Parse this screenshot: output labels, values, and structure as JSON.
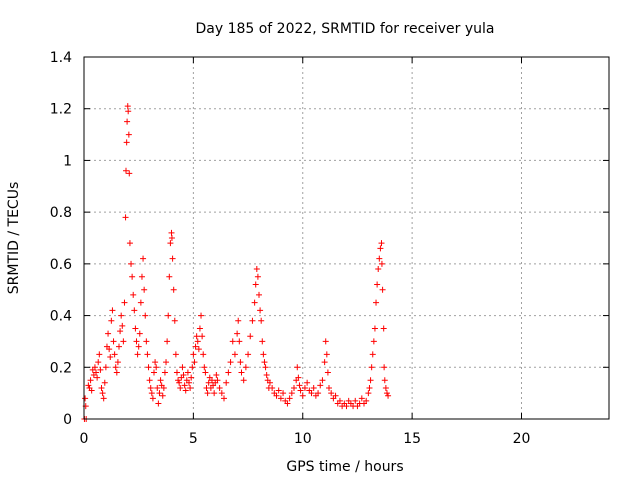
{
  "chart_data": {
    "type": "scatter",
    "title": "Day 185 of 2022, SRMTID for receiver yula",
    "xlabel": "GPS time / hours",
    "ylabel": "SRMTID / TECUs",
    "xlim": [
      0,
      24
    ],
    "ylim": [
      0,
      1.4
    ],
    "xticks": [
      0,
      5,
      10,
      15,
      20
    ],
    "xtick_labels": [
      "0",
      "5",
      "10",
      "15",
      "20"
    ],
    "yticks": [
      0,
      0.2,
      0.4,
      0.6,
      0.8,
      1.0,
      1.2,
      1.4
    ],
    "ytick_labels": [
      "0",
      "0.2",
      "0.4",
      "0.6",
      "0.8",
      "1",
      "1.2",
      "1.4"
    ],
    "grid": true,
    "marker": "plus",
    "color": "#ff0000",
    "series": [
      {
        "name": "SRMTID",
        "points": [
          [
            0.02,
            0.0
          ],
          [
            0.05,
            0.08
          ],
          [
            0.08,
            0.05
          ],
          [
            0.1,
            0.0
          ],
          [
            0.2,
            0.13
          ],
          [
            0.25,
            0.12
          ],
          [
            0.3,
            0.15
          ],
          [
            0.35,
            0.11
          ],
          [
            0.4,
            0.19
          ],
          [
            0.45,
            0.17
          ],
          [
            0.5,
            0.2
          ],
          [
            0.55,
            0.18
          ],
          [
            0.6,
            0.16
          ],
          [
            0.65,
            0.22
          ],
          [
            0.7,
            0.25
          ],
          [
            0.75,
            0.19
          ],
          [
            0.8,
            0.12
          ],
          [
            0.85,
            0.1
          ],
          [
            0.9,
            0.08
          ],
          [
            0.95,
            0.14
          ],
          [
            1.0,
            0.2
          ],
          [
            1.05,
            0.28
          ],
          [
            1.1,
            0.33
          ],
          [
            1.15,
            0.27
          ],
          [
            1.2,
            0.24
          ],
          [
            1.25,
            0.38
          ],
          [
            1.3,
            0.42
          ],
          [
            1.35,
            0.3
          ],
          [
            1.4,
            0.25
          ],
          [
            1.45,
            0.2
          ],
          [
            1.5,
            0.18
          ],
          [
            1.55,
            0.22
          ],
          [
            1.6,
            0.28
          ],
          [
            1.65,
            0.34
          ],
          [
            1.7,
            0.4
          ],
          [
            1.75,
            0.36
          ],
          [
            1.8,
            0.3
          ],
          [
            1.85,
            0.45
          ],
          [
            1.9,
            0.78
          ],
          [
            1.92,
            0.96
          ],
          [
            1.95,
            1.07
          ],
          [
            1.97,
            1.15
          ],
          [
            2.0,
            1.21
          ],
          [
            2.02,
            1.19
          ],
          [
            2.05,
            1.1
          ],
          [
            2.07,
            0.95
          ],
          [
            2.1,
            0.68
          ],
          [
            2.15,
            0.6
          ],
          [
            2.2,
            0.55
          ],
          [
            2.25,
            0.48
          ],
          [
            2.3,
            0.42
          ],
          [
            2.35,
            0.35
          ],
          [
            2.4,
            0.3
          ],
          [
            2.45,
            0.25
          ],
          [
            2.5,
            0.28
          ],
          [
            2.55,
            0.33
          ],
          [
            2.6,
            0.45
          ],
          [
            2.65,
            0.55
          ],
          [
            2.7,
            0.62
          ],
          [
            2.75,
            0.5
          ],
          [
            2.8,
            0.4
          ],
          [
            2.85,
            0.3
          ],
          [
            2.9,
            0.25
          ],
          [
            2.95,
            0.2
          ],
          [
            3.0,
            0.15
          ],
          [
            3.05,
            0.12
          ],
          [
            3.1,
            0.1
          ],
          [
            3.15,
            0.08
          ],
          [
            3.2,
            0.18
          ],
          [
            3.25,
            0.22
          ],
          [
            3.3,
            0.2
          ],
          [
            3.35,
            0.12
          ],
          [
            3.4,
            0.06
          ],
          [
            3.45,
            0.1
          ],
          [
            3.5,
            0.15
          ],
          [
            3.55,
            0.13
          ],
          [
            3.6,
            0.09
          ],
          [
            3.65,
            0.12
          ],
          [
            3.7,
            0.18
          ],
          [
            3.75,
            0.22
          ],
          [
            3.8,
            0.3
          ],
          [
            3.85,
            0.4
          ],
          [
            3.9,
            0.55
          ],
          [
            3.95,
            0.68
          ],
          [
            4.0,
            0.72
          ],
          [
            4.02,
            0.7
          ],
          [
            4.05,
            0.62
          ],
          [
            4.1,
            0.5
          ],
          [
            4.15,
            0.38
          ],
          [
            4.2,
            0.25
          ],
          [
            4.25,
            0.18
          ],
          [
            4.3,
            0.15
          ],
          [
            4.35,
            0.14
          ],
          [
            4.4,
            0.12
          ],
          [
            4.45,
            0.16
          ],
          [
            4.5,
            0.2
          ],
          [
            4.55,
            0.17
          ],
          [
            4.6,
            0.13
          ],
          [
            4.65,
            0.11
          ],
          [
            4.7,
            0.15
          ],
          [
            4.75,
            0.18
          ],
          [
            4.8,
            0.14
          ],
          [
            4.85,
            0.12
          ],
          [
            4.9,
            0.16
          ],
          [
            4.95,
            0.2
          ],
          [
            5.0,
            0.25
          ],
          [
            5.05,
            0.22
          ],
          [
            5.1,
            0.28
          ],
          [
            5.15,
            0.32
          ],
          [
            5.2,
            0.3
          ],
          [
            5.25,
            0.27
          ],
          [
            5.3,
            0.35
          ],
          [
            5.35,
            0.4
          ],
          [
            5.4,
            0.32
          ],
          [
            5.45,
            0.25
          ],
          [
            5.5,
            0.2
          ],
          [
            5.55,
            0.18
          ],
          [
            5.6,
            0.12
          ],
          [
            5.65,
            0.1
          ],
          [
            5.7,
            0.14
          ],
          [
            5.75,
            0.16
          ],
          [
            5.8,
            0.12
          ],
          [
            5.85,
            0.15
          ],
          [
            5.9,
            0.13
          ],
          [
            5.95,
            0.1
          ],
          [
            6.0,
            0.14
          ],
          [
            6.05,
            0.17
          ],
          [
            6.1,
            0.15
          ],
          [
            6.2,
            0.12
          ],
          [
            6.3,
            0.1
          ],
          [
            6.4,
            0.08
          ],
          [
            6.5,
            0.14
          ],
          [
            6.6,
            0.18
          ],
          [
            6.7,
            0.22
          ],
          [
            6.8,
            0.3
          ],
          [
            6.9,
            0.25
          ],
          [
            7.0,
            0.33
          ],
          [
            7.05,
            0.38
          ],
          [
            7.1,
            0.3
          ],
          [
            7.15,
            0.22
          ],
          [
            7.2,
            0.18
          ],
          [
            7.3,
            0.15
          ],
          [
            7.4,
            0.2
          ],
          [
            7.5,
            0.25
          ],
          [
            7.6,
            0.32
          ],
          [
            7.7,
            0.38
          ],
          [
            7.8,
            0.45
          ],
          [
            7.85,
            0.52
          ],
          [
            7.9,
            0.58
          ],
          [
            7.95,
            0.55
          ],
          [
            8.0,
            0.48
          ],
          [
            8.05,
            0.42
          ],
          [
            8.1,
            0.38
          ],
          [
            8.15,
            0.3
          ],
          [
            8.2,
            0.25
          ],
          [
            8.25,
            0.22
          ],
          [
            8.3,
            0.2
          ],
          [
            8.35,
            0.17
          ],
          [
            8.4,
            0.15
          ],
          [
            8.45,
            0.12
          ],
          [
            8.5,
            0.14
          ],
          [
            8.6,
            0.12
          ],
          [
            8.7,
            0.1
          ],
          [
            8.8,
            0.09
          ],
          [
            8.9,
            0.11
          ],
          [
            9.0,
            0.08
          ],
          [
            9.1,
            0.1
          ],
          [
            9.2,
            0.07
          ],
          [
            9.3,
            0.06
          ],
          [
            9.4,
            0.08
          ],
          [
            9.5,
            0.1
          ],
          [
            9.6,
            0.12
          ],
          [
            9.7,
            0.15
          ],
          [
            9.75,
            0.2
          ],
          [
            9.8,
            0.16
          ],
          [
            9.85,
            0.13
          ],
          [
            9.9,
            0.11
          ],
          [
            10.0,
            0.09
          ],
          [
            10.1,
            0.12
          ],
          [
            10.2,
            0.14
          ],
          [
            10.3,
            0.11
          ],
          [
            10.4,
            0.1
          ],
          [
            10.5,
            0.12
          ],
          [
            10.6,
            0.09
          ],
          [
            10.7,
            0.1
          ],
          [
            10.8,
            0.13
          ],
          [
            10.9,
            0.15
          ],
          [
            11.0,
            0.22
          ],
          [
            11.05,
            0.3
          ],
          [
            11.1,
            0.25
          ],
          [
            11.15,
            0.18
          ],
          [
            11.2,
            0.12
          ],
          [
            11.3,
            0.1
          ],
          [
            11.4,
            0.08
          ],
          [
            11.5,
            0.09
          ],
          [
            11.6,
            0.06
          ],
          [
            11.7,
            0.07
          ],
          [
            11.8,
            0.05
          ],
          [
            11.9,
            0.06
          ],
          [
            12.0,
            0.05
          ],
          [
            12.1,
            0.07
          ],
          [
            12.2,
            0.06
          ],
          [
            12.3,
            0.05
          ],
          [
            12.4,
            0.07
          ],
          [
            12.5,
            0.05
          ],
          [
            12.6,
            0.06
          ],
          [
            12.7,
            0.08
          ],
          [
            12.8,
            0.06
          ],
          [
            12.9,
            0.07
          ],
          [
            13.0,
            0.1
          ],
          [
            13.05,
            0.12
          ],
          [
            13.1,
            0.15
          ],
          [
            13.15,
            0.2
          ],
          [
            13.2,
            0.25
          ],
          [
            13.25,
            0.3
          ],
          [
            13.3,
            0.35
          ],
          [
            13.35,
            0.45
          ],
          [
            13.4,
            0.52
          ],
          [
            13.45,
            0.58
          ],
          [
            13.5,
            0.62
          ],
          [
            13.55,
            0.66
          ],
          [
            13.6,
            0.68
          ],
          [
            13.62,
            0.6
          ],
          [
            13.65,
            0.5
          ],
          [
            13.7,
            0.35
          ],
          [
            13.72,
            0.2
          ],
          [
            13.75,
            0.15
          ],
          [
            13.8,
            0.12
          ],
          [
            13.85,
            0.1
          ],
          [
            13.9,
            0.09
          ]
        ]
      }
    ]
  }
}
